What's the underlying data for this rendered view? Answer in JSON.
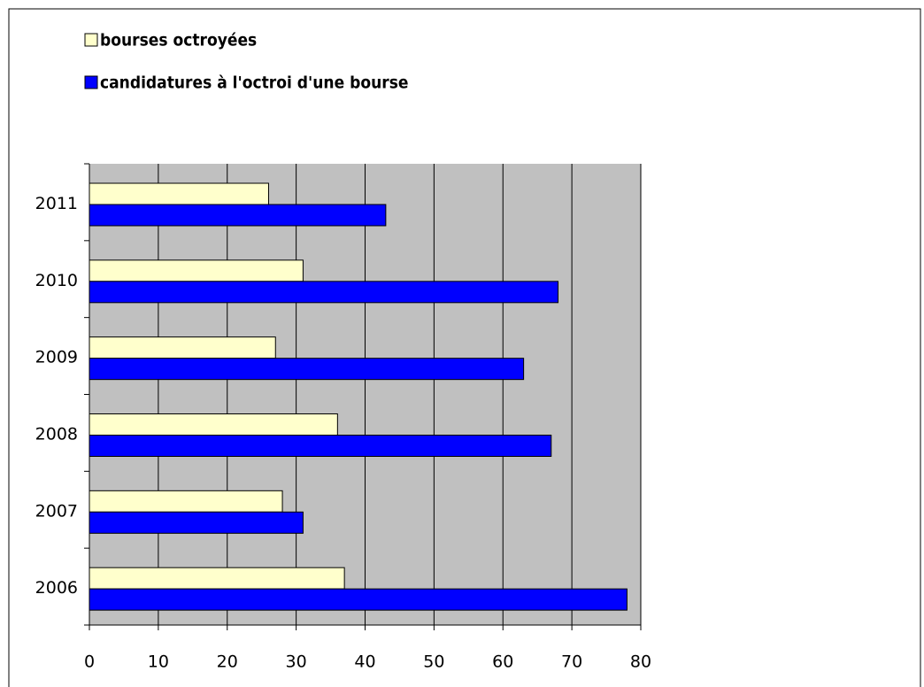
{
  "chart_data": {
    "type": "barh",
    "categories": [
      "2006",
      "2007",
      "2008",
      "2009",
      "2010",
      "2011"
    ],
    "series": [
      {
        "name": "bourses octroyées",
        "color": "#ffffcc",
        "values": [
          37,
          28,
          36,
          27,
          31,
          26
        ]
      },
      {
        "name": "candidatures à l'octroi d'une bourse",
        "color": "#0000ff",
        "values": [
          78,
          31,
          67,
          63,
          68,
          43
        ]
      }
    ],
    "xlim": [
      0,
      80
    ],
    "xticks": [
      0,
      10,
      20,
      30,
      40,
      50,
      60,
      70,
      80
    ],
    "grid": true,
    "plot_background": "#c0c0c0",
    "legend": "top-left"
  }
}
